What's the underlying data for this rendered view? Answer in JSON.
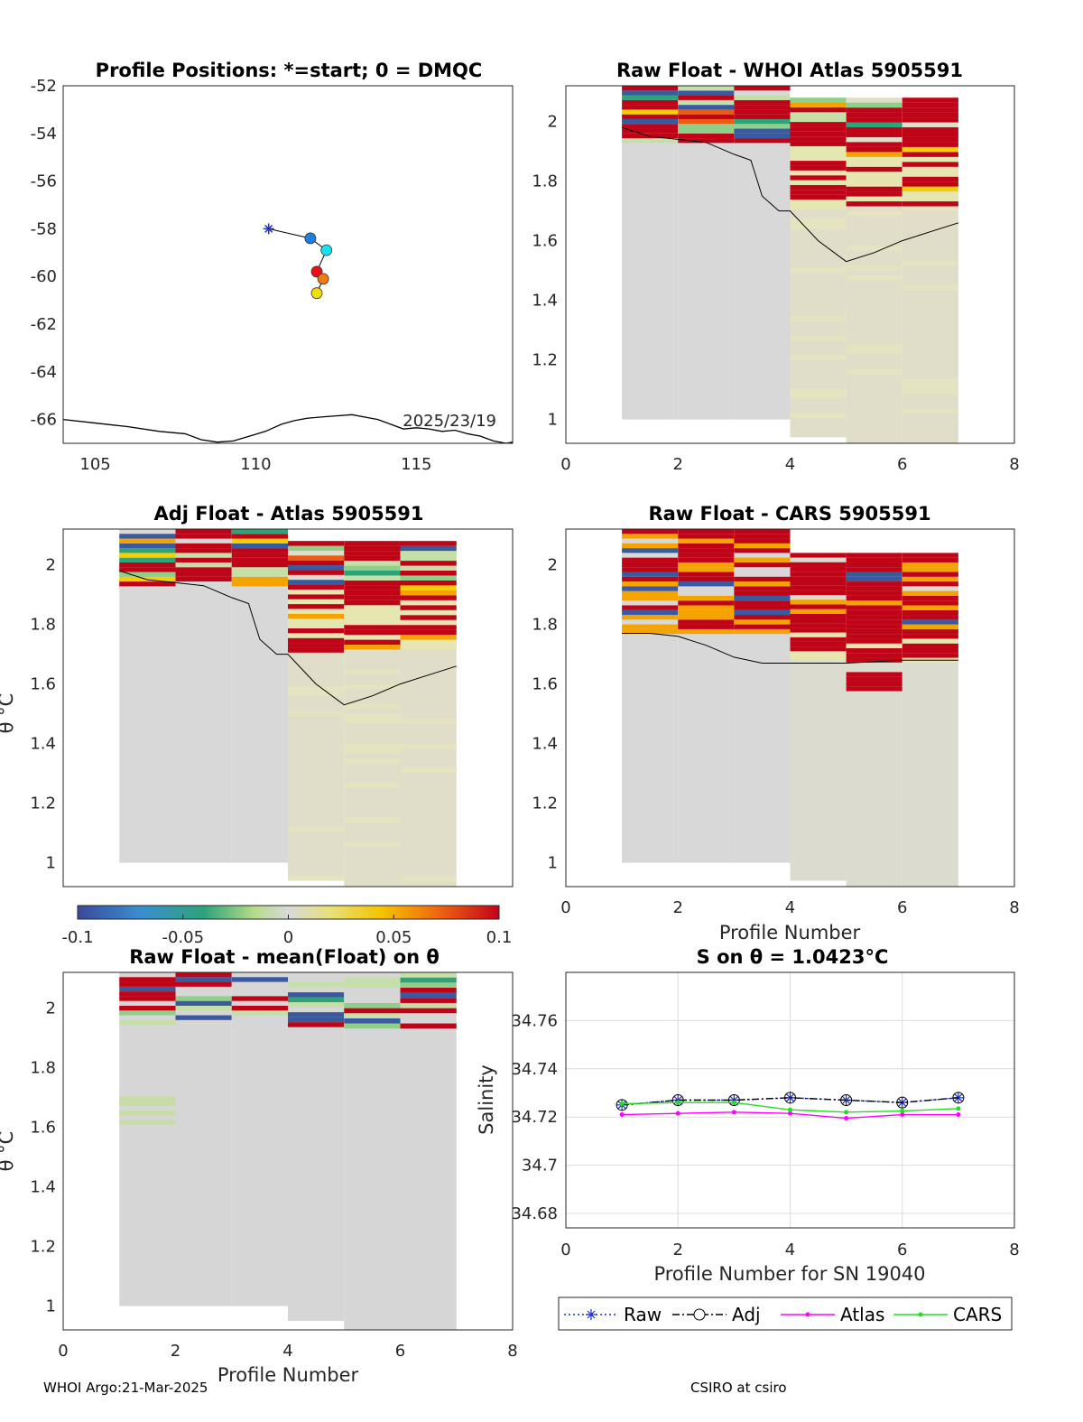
{
  "footer": {
    "left": "WHOI Argo:21-Mar-2025",
    "right": "CSIRO at csiro"
  },
  "colorbar": {
    "ticks": [
      "-0.1",
      "-0.05",
      "0",
      "0.05",
      "0.1"
    ]
  },
  "colors": {
    "raw": "#1f2fcc",
    "adj": "#000000",
    "atlas": "#ff00ff",
    "cars": "#22dd22",
    "positive": "#c00418",
    "neutral": "#d6d6d6",
    "negative": "#3a5aa0"
  },
  "chart_data": [
    {
      "id": "positions",
      "type": "scatter",
      "title": "Profile Positions: *=start; 0 = DMQC",
      "annotation": "2025/23/19",
      "xlim": [
        104,
        118
      ],
      "ylim": [
        -67,
        -52
      ],
      "xticks": [
        "105",
        "110",
        "115"
      ],
      "yticks": [
        "-52",
        "-54",
        "-56",
        "-58",
        "-60",
        "-62",
        "-64",
        "-66"
      ],
      "track": {
        "lon": [
          110.4,
          111.7,
          112.2,
          111.9,
          112.1,
          111.9
        ],
        "lat": [
          -58.0,
          -58.4,
          -58.9,
          -59.8,
          -60.1,
          -60.7
        ],
        "colors": [
          "#1f2fcc",
          "#1f7fe0",
          "#19e0ee",
          "#ee1010",
          "#ee7a10",
          "#f0e000"
        ]
      },
      "coast": {
        "lon": [
          104,
          105,
          106,
          107,
          107.8,
          108.3,
          108.8,
          109.3,
          109.8,
          110.3,
          110.8,
          111.2,
          111.6,
          112.0,
          112.5,
          113.0,
          113.4,
          113.8,
          114.2,
          114.6,
          115.0,
          115.4,
          115.8,
          116.2,
          116.6,
          117.0,
          117.4,
          117.8,
          118
        ],
        "lat": [
          -66.0,
          -66.15,
          -66.3,
          -66.5,
          -66.6,
          -66.85,
          -66.95,
          -66.9,
          -66.7,
          -66.5,
          -66.2,
          -66.05,
          -65.95,
          -65.9,
          -65.85,
          -65.8,
          -65.9,
          -66.0,
          -66.2,
          -66.4,
          -66.35,
          -66.4,
          -66.5,
          -66.45,
          -66.6,
          -66.7,
          -66.9,
          -67.0,
          -66.95
        ]
      }
    },
    {
      "id": "raw-whoi",
      "type": "heatmap",
      "title": "Raw Float - WHOI Atlas  5905591",
      "xlim": [
        0,
        8
      ],
      "ylim": [
        0.92,
        2.12
      ],
      "xticks": [
        "0",
        "2",
        "4",
        "6",
        "8"
      ],
      "yticks": [
        "1",
        "1.2",
        "1.4",
        "1.6",
        "1.8",
        "2"
      ],
      "contour_x": [
        1,
        1.5,
        2,
        2.5,
        3,
        3.3,
        3.5,
        3.8,
        4.0,
        4.5,
        5.0,
        5.5,
        6.0,
        6.5,
        7.0
      ],
      "contour_y": [
        1.98,
        1.95,
        1.94,
        1.93,
        1.89,
        1.87,
        1.75,
        1.7,
        1.7,
        1.6,
        1.53,
        1.56,
        1.6,
        1.63,
        1.66
      ]
    },
    {
      "id": "adj-atlas",
      "type": "heatmap",
      "title": "Adj Float - Atlas  5905591",
      "xlim": [
        0,
        8
      ],
      "ylim": [
        0.92,
        2.12
      ],
      "xticks": [
        "0",
        "2",
        "4",
        "6",
        "8"
      ],
      "yticks": [
        "1",
        "1.2",
        "1.4",
        "1.6",
        "1.8",
        "2"
      ],
      "ylabel": "θ °C",
      "contour_x": [
        1,
        1.5,
        2,
        2.5,
        3,
        3.3,
        3.5,
        3.8,
        4.0,
        4.5,
        5.0,
        5.5,
        6.0,
        6.5,
        7.0
      ],
      "contour_y": [
        1.98,
        1.95,
        1.94,
        1.93,
        1.89,
        1.87,
        1.75,
        1.7,
        1.7,
        1.6,
        1.53,
        1.56,
        1.6,
        1.63,
        1.66
      ]
    },
    {
      "id": "raw-cars",
      "type": "heatmap",
      "title": "Raw Float - CARS  5905591",
      "xlim": [
        0,
        8
      ],
      "ylim": [
        0.92,
        2.12
      ],
      "xticks": [
        "0",
        "2",
        "4",
        "6",
        "8"
      ],
      "yticks": [
        "1",
        "1.2",
        "1.4",
        "1.6",
        "1.8",
        "2"
      ],
      "xlabel": "Profile Number",
      "contour_x": [
        1,
        1.5,
        2,
        2.5,
        3,
        3.5,
        4.0,
        5.0,
        6.0,
        7.0
      ],
      "contour_y": [
        1.77,
        1.77,
        1.76,
        1.73,
        1.69,
        1.67,
        1.67,
        1.67,
        1.68,
        1.68
      ]
    },
    {
      "id": "raw-mean",
      "type": "heatmap",
      "title": "Raw Float - mean(Float) on θ",
      "xlim": [
        0,
        8
      ],
      "ylim": [
        0.92,
        2.12
      ],
      "xticks": [
        "0",
        "2",
        "4",
        "6",
        "8"
      ],
      "yticks": [
        "1",
        "1.2",
        "1.4",
        "1.6",
        "1.8",
        "2"
      ],
      "xlabel": "Profile Number",
      "ylabel": "θ °C"
    },
    {
      "id": "salinity",
      "type": "line",
      "title": "S on θ = 1.0423°C",
      "xlabel": "Profile Number for SN 19040",
      "ylabel": "Salinity",
      "xlim": [
        0,
        8
      ],
      "ylim": [
        34.674,
        34.78
      ],
      "xticks": [
        "0",
        "2",
        "4",
        "6",
        "8"
      ],
      "yticks": [
        "34.68",
        "34.7",
        "34.72",
        "34.74",
        "34.76"
      ],
      "x": [
        1,
        2,
        3,
        4,
        5,
        6,
        7
      ],
      "series": [
        {
          "name": "Raw",
          "values": [
            34.725,
            34.727,
            34.727,
            34.728,
            34.727,
            34.726,
            34.728
          ]
        },
        {
          "name": "Adj",
          "values": [
            34.725,
            34.727,
            34.727,
            34.728,
            34.727,
            34.726,
            34.728
          ]
        },
        {
          "name": "Atlas",
          "values": [
            34.721,
            34.7215,
            34.722,
            34.7215,
            34.7195,
            34.721,
            34.721
          ]
        },
        {
          "name": "CARS",
          "values": [
            34.7255,
            34.726,
            34.726,
            34.723,
            34.722,
            34.7225,
            34.7235
          ]
        }
      ]
    }
  ]
}
